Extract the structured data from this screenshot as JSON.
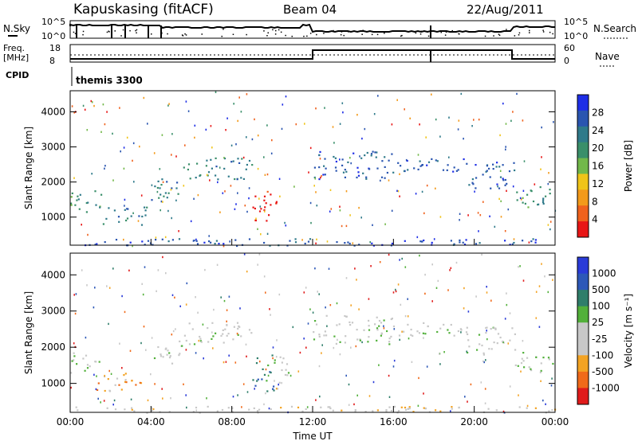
{
  "header": {
    "station": "Kapuskasing (fitACF)",
    "beam": "Beam 04",
    "date": "22/Aug/2011"
  },
  "small_panels": {
    "nsky_label": "N.Sky",
    "nsky_ticks": [
      "10^5",
      "10^0"
    ],
    "nsearch_label": "N.Search",
    "nsearch_ticks": [
      "10^5",
      "10^0"
    ],
    "freq_label": "Freq.",
    "freq_unit": "[MHz]",
    "freq_ticks": [
      "18",
      "8"
    ],
    "nave_label": "Nave",
    "nave_ticks": [
      "60",
      "0"
    ],
    "cpid_label": "CPID",
    "cpid_value": "themis 3300"
  },
  "colors": {
    "power_scale": [
      "#1e2ee6",
      "#2a55b0",
      "#2f7a8a",
      "#3a8f6a",
      "#72b84a",
      "#f0c419",
      "#f39a1a",
      "#f0621d",
      "#e81616"
    ],
    "velocity_scale": [
      "#2a3bd8",
      "#2d58b8",
      "#2f7e6a",
      "#52b03a",
      "#c8c8c8",
      "#c8c8c8",
      "#f3a323",
      "#f06a1a",
      "#e01b1b"
    ]
  },
  "chart_data": [
    {
      "type": "heatmap",
      "panel": "power",
      "xlabel": "",
      "ylabel": "Slant Range [km]",
      "x_ticks": [
        "00:00",
        "04:00",
        "08:00",
        "12:00",
        "16:00",
        "20:00",
        "00:00"
      ],
      "y_ticks": [
        1000,
        2000,
        3000,
        4000
      ],
      "ylim": [
        200,
        4600
      ],
      "colorbar_label": "Power [dB]",
      "colorbar_ticks": [
        "28",
        "24",
        "20",
        "16",
        "12",
        "8",
        "4"
      ],
      "features_hours_km": [
        {
          "t0": 0.0,
          "t1": 1.5,
          "r0": 1100,
          "r1": 1800,
          "level": 3
        },
        {
          "t0": 1.5,
          "t1": 3.8,
          "r0": 800,
          "r1": 1300,
          "level": 2
        },
        {
          "t0": 4.0,
          "t1": 5.5,
          "r0": 1500,
          "r1": 2200,
          "level": 2
        },
        {
          "t0": 5.5,
          "t1": 9.0,
          "r0": 2100,
          "r1": 2700,
          "level": 2
        },
        {
          "t0": 9.0,
          "t1": 10.2,
          "r0": 800,
          "r1": 1800,
          "level": 8
        },
        {
          "t0": 12.0,
          "t1": 16.0,
          "r0": 2100,
          "r1": 2900,
          "level": 1
        },
        {
          "t0": 16.0,
          "t1": 19.5,
          "r0": 2300,
          "r1": 2700,
          "level": 1
        },
        {
          "t0": 19.5,
          "t1": 22.0,
          "r0": 1800,
          "r1": 2600,
          "level": 1
        },
        {
          "t0": 22.0,
          "t1": 24.0,
          "r0": 1300,
          "r1": 1900,
          "level": 3
        },
        {
          "t0": 0.0,
          "t1": 24.0,
          "r0": 200,
          "r1": 400,
          "level": 1
        }
      ]
    },
    {
      "type": "heatmap",
      "panel": "velocity",
      "xlabel": "Time UT",
      "ylabel": "Slant Range [km]",
      "x_ticks": [
        "00:00",
        "04:00",
        "08:00",
        "12:00",
        "16:00",
        "20:00",
        "00:00"
      ],
      "y_ticks": [
        1000,
        2000,
        3000,
        4000
      ],
      "ylim": [
        200,
        4600
      ],
      "colorbar_label": "Velocity [m s⁻¹]",
      "colorbar_ticks": [
        "1000",
        "500",
        "100",
        "25",
        "-25",
        "-100",
        "-500",
        "-1000"
      ],
      "features_hours_km": [
        {
          "t0": 0.0,
          "t1": 1.5,
          "r0": 1300,
          "r1": 1900,
          "level": 4
        },
        {
          "t0": 1.0,
          "t1": 3.5,
          "r0": 800,
          "r1": 1300,
          "level": 6
        },
        {
          "t0": 4.0,
          "t1": 5.5,
          "r0": 1500,
          "r1": 2200,
          "level": 4
        },
        {
          "t0": 5.5,
          "t1": 9.0,
          "r0": 2100,
          "r1": 2700,
          "level": 4
        },
        {
          "t0": 9.0,
          "t1": 10.2,
          "r0": 800,
          "r1": 1800,
          "level": 2
        },
        {
          "t0": 10.2,
          "t1": 10.8,
          "r0": 800,
          "r1": 1800,
          "level": 4
        },
        {
          "t0": 12.0,
          "t1": 16.0,
          "r0": 2100,
          "r1": 2900,
          "level": 4
        },
        {
          "t0": 16.0,
          "t1": 19.5,
          "r0": 2300,
          "r1": 2700,
          "level": 4
        },
        {
          "t0": 19.5,
          "t1": 22.0,
          "r0": 1800,
          "r1": 2600,
          "level": 4
        },
        {
          "t0": 22.0,
          "t1": 24.0,
          "r0": 1300,
          "r1": 1900,
          "level": 4
        },
        {
          "t0": 0.0,
          "t1": 24.0,
          "r0": 200,
          "r1": 400,
          "level": 5
        }
      ]
    }
  ]
}
